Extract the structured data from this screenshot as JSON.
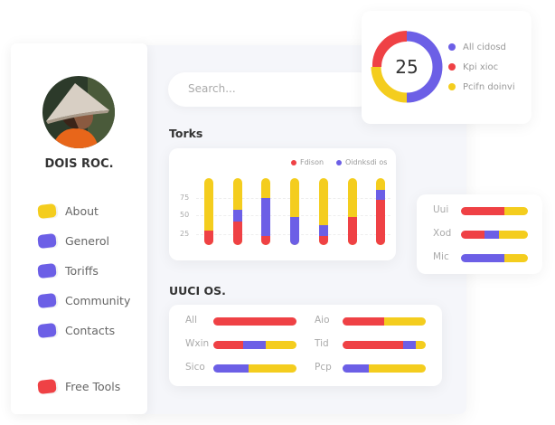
{
  "colors": {
    "red": "#ef4145",
    "purple": "#6c5fe6",
    "yellow": "#f4cd1e"
  },
  "profile": {
    "name": "DOIS ROC."
  },
  "sidebar": {
    "items": [
      {
        "label": "About",
        "color": "#f4cd1e"
      },
      {
        "label": "Generol",
        "color": "#6c5fe6"
      },
      {
        "label": "Toriffs",
        "color": "#6c5fe6"
      },
      {
        "label": "Community",
        "color": "#6c5fe6"
      },
      {
        "label": "Contacts",
        "color": "#6c5fe6"
      },
      {
        "label": "Free Tools",
        "color": "#ef4145"
      }
    ]
  },
  "search": {
    "placeholder": "Search..."
  },
  "donut": {
    "value": "25",
    "legend": [
      "All cidosd",
      "Kpi xioc",
      "Pcifn doinvi"
    ],
    "segments": [
      50,
      25,
      25
    ]
  },
  "torks": {
    "title": "Torks",
    "legend": [
      "Fdison",
      "Oidnksdi os"
    ],
    "yticks": [
      "75",
      "50",
      "25"
    ],
    "bars": [
      {
        "red": 22,
        "purple": 0
      },
      {
        "red": 35,
        "purple": 18
      },
      {
        "red": 14,
        "purple": 56
      },
      {
        "red": 0,
        "purple": 42
      },
      {
        "red": 14,
        "purple": 16
      },
      {
        "red": 42,
        "purple": 0
      },
      {
        "red": 68,
        "purple": 14
      }
    ]
  },
  "side_bars": [
    {
      "label": "Uui",
      "red": 65,
      "purple": 0
    },
    {
      "label": "Xod",
      "red": 35,
      "purple": 22
    },
    {
      "label": "Mic",
      "red": 0,
      "purple": 65
    }
  ],
  "uuci": {
    "title": "UUCI OS.",
    "rows": [
      {
        "label": "All",
        "red": 100,
        "purple": 0
      },
      {
        "label": "Aio",
        "red": 50,
        "purple": 0
      },
      {
        "label": "Wxin",
        "red": 36,
        "purple": 27
      },
      {
        "label": "Tid",
        "red": 73,
        "purple": 15
      },
      {
        "label": "Sico",
        "red": 0,
        "purple": 42
      },
      {
        "label": "Pcp",
        "red": 0,
        "purple": 31
      }
    ]
  }
}
